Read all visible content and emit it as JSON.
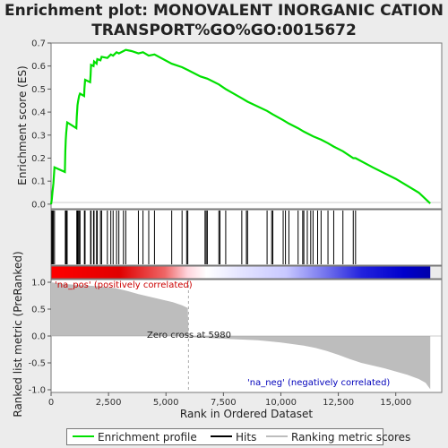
{
  "title_line1": "Enrichment plot: MONOVALENT INORGANIC CATION",
  "title_line2": "TRANSPORT%GO%GO:0015672",
  "top_panel": {
    "ylabel": "Enrichment score (ES)",
    "yticks": [
      "0.0",
      "0.1",
      "0.2",
      "0.3",
      "0.4",
      "0.5",
      "0.6",
      "0.7"
    ]
  },
  "bottom_panel": {
    "ylabel": "Ranked list metric (PreRanked)",
    "xlabel": "Rank in Ordered Dataset",
    "yticks": [
      "-1.0",
      "-0.5",
      "0.0",
      "0.5",
      "1.0"
    ],
    "xticks": [
      "0",
      "2,500",
      "5,000",
      "7,500",
      "10,000",
      "12,500",
      "15,000"
    ],
    "pos_label": "'na_pos' (positively correlated)",
    "neg_label": "'na_neg' (negatively correlated)",
    "zero_cross_label": "Zero cross at 5980"
  },
  "legend": {
    "enrichment": "Enrichment profile",
    "hits": "Hits",
    "metric": "Ranking metric scores"
  },
  "colors": {
    "enrichment_line": "#00e000",
    "hits": "#000000",
    "metric_fill": "#bdbdbd",
    "pos_label": "#cc0000",
    "neg_label": "#0000bb"
  },
  "chart_data": {
    "type": "line",
    "total_ranks": 16500,
    "zero_cross": 5980,
    "xlim": [
      0,
      17000
    ],
    "es_ylim": [
      -0.02,
      0.7
    ],
    "metric_ylim": [
      -1.05,
      1.05
    ],
    "hits": [
      30,
      60,
      100,
      150,
      620,
      640,
      660,
      700,
      1120,
      1150,
      1180,
      1220,
      1260,
      1450,
      1480,
      1720,
      1740,
      1850,
      1870,
      1980,
      2010,
      2150,
      2200,
      2450,
      2600,
      2700,
      2850,
      2950,
      3150,
      3250,
      3800,
      4000,
      4250,
      4500,
      5250,
      5700,
      5900,
      5950,
      6700,
      6750,
      6800,
      7300,
      7350,
      7600,
      8300,
      8500,
      8550,
      9400,
      9600,
      9650,
      10100,
      10200,
      10350,
      10750,
      10950,
      11000,
      11150,
      11300,
      11400,
      11600,
      11750,
      12050,
      12300,
      12700,
      13150,
      13250
    ],
    "es_profile": [
      [
        0,
        0.0
      ],
      [
        30,
        0.02
      ],
      [
        60,
        0.05
      ],
      [
        100,
        0.09
      ],
      [
        150,
        0.16
      ],
      [
        600,
        0.14
      ],
      [
        620,
        0.23
      ],
      [
        640,
        0.28
      ],
      [
        660,
        0.31
      ],
      [
        700,
        0.355
      ],
      [
        1100,
        0.33
      ],
      [
        1120,
        0.38
      ],
      [
        1150,
        0.43
      ],
      [
        1180,
        0.45
      ],
      [
        1220,
        0.47
      ],
      [
        1260,
        0.48
      ],
      [
        1440,
        0.47
      ],
      [
        1450,
        0.5
      ],
      [
        1480,
        0.54
      ],
      [
        1700,
        0.53
      ],
      [
        1720,
        0.56
      ],
      [
        1740,
        0.605
      ],
      [
        1850,
        0.6
      ],
      [
        1870,
        0.62
      ],
      [
        1980,
        0.61
      ],
      [
        2010,
        0.63
      ],
      [
        2150,
        0.625
      ],
      [
        2200,
        0.64
      ],
      [
        2450,
        0.635
      ],
      [
        2600,
        0.65
      ],
      [
        2700,
        0.645
      ],
      [
        2850,
        0.66
      ],
      [
        2950,
        0.655
      ],
      [
        3150,
        0.665
      ],
      [
        3250,
        0.67
      ],
      [
        3500,
        0.665
      ],
      [
        3800,
        0.655
      ],
      [
        4000,
        0.66
      ],
      [
        4250,
        0.645
      ],
      [
        4500,
        0.65
      ],
      [
        5250,
        0.61
      ],
      [
        5700,
        0.595
      ],
      [
        5900,
        0.585
      ],
      [
        5950,
        0.583
      ],
      [
        6500,
        0.555
      ],
      [
        6800,
        0.545
      ],
      [
        7300,
        0.52
      ],
      [
        7600,
        0.5
      ],
      [
        8300,
        0.46
      ],
      [
        8550,
        0.445
      ],
      [
        9400,
        0.405
      ],
      [
        9650,
        0.39
      ],
      [
        10100,
        0.365
      ],
      [
        10350,
        0.35
      ],
      [
        10750,
        0.33
      ],
      [
        11000,
        0.315
      ],
      [
        11400,
        0.295
      ],
      [
        11750,
        0.28
      ],
      [
        12050,
        0.265
      ],
      [
        12300,
        0.25
      ],
      [
        12700,
        0.23
      ],
      [
        13150,
        0.2
      ],
      [
        13250,
        0.2
      ],
      [
        14000,
        0.16
      ],
      [
        15000,
        0.11
      ],
      [
        16000,
        0.05
      ],
      [
        16500,
        0.003
      ]
    ],
    "metric_profile": [
      [
        0,
        1.0
      ],
      [
        300,
        0.98
      ],
      [
        800,
        0.96
      ],
      [
        1500,
        0.94
      ],
      [
        2200,
        0.92
      ],
      [
        2800,
        0.89
      ],
      [
        3300,
        0.84
      ],
      [
        3800,
        0.78
      ],
      [
        4300,
        0.73
      ],
      [
        4800,
        0.68
      ],
      [
        5300,
        0.63
      ],
      [
        5700,
        0.57
      ],
      [
        5950,
        0.52
      ],
      [
        5980,
        0.0
      ],
      [
        6100,
        -0.02
      ],
      [
        7000,
        -0.04
      ],
      [
        8000,
        -0.06
      ],
      [
        9000,
        -0.08
      ],
      [
        10000,
        -0.12
      ],
      [
        11000,
        -0.18
      ],
      [
        11500,
        -0.22
      ],
      [
        12000,
        -0.28
      ],
      [
        12500,
        -0.35
      ],
      [
        13000,
        -0.43
      ],
      [
        13500,
        -0.5
      ],
      [
        14000,
        -0.55
      ],
      [
        14500,
        -0.6
      ],
      [
        15000,
        -0.66
      ],
      [
        15500,
        -0.72
      ],
      [
        16000,
        -0.8
      ],
      [
        16300,
        -0.87
      ],
      [
        16500,
        -0.99
      ]
    ],
    "colorbar_stops": [
      [
        0,
        "#ff0000"
      ],
      [
        0.18,
        "#e00000"
      ],
      [
        0.3,
        "#ee6666"
      ],
      [
        0.36,
        "#ffd5dd"
      ],
      [
        0.41,
        "#ffffff"
      ],
      [
        0.5,
        "#e4e4ff"
      ],
      [
        0.62,
        "#c8c8ff"
      ],
      [
        0.72,
        "#7777ee"
      ],
      [
        0.82,
        "#2222dd"
      ],
      [
        0.93,
        "#0000cc"
      ],
      [
        1.0,
        "#0000aa"
      ]
    ]
  }
}
